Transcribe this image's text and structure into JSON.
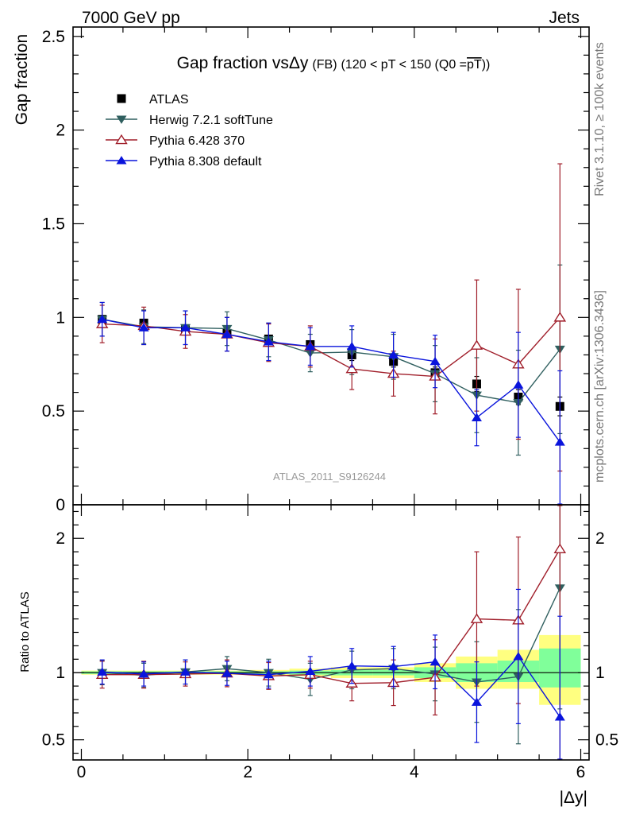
{
  "header": {
    "left": "7000 GeV pp",
    "right": "Jets"
  },
  "side": {
    "rivet": "Rivet 3.1.10, ≥ 100k events",
    "mcplots": "mcplots.cern.ch [arXiv:1306.3436]"
  },
  "chart_data": [
    {
      "type": "line",
      "title_main": "Gap fraction vs",
      "title_delta": "Δy",
      "title_fb": "(FB)",
      "title_cut": "(120 < pT < 150 (Q0 =",
      "title_pt": "pT",
      "title_close": "))",
      "ylabel": "Gap fraction",
      "watermark": "ATLAS_2011_S9126244",
      "xlim": [
        -0.1,
        6.1
      ],
      "ylim": [
        0,
        2.55
      ],
      "yticks": [
        0,
        0.5,
        1,
        1.5,
        2,
        2.5
      ],
      "ytick_labels": [
        "0",
        "0.5",
        "1",
        "1.5",
        "2",
        "2.5"
      ],
      "legend_position": "top-left",
      "x": [
        0.25,
        0.75,
        1.25,
        1.75,
        2.25,
        2.75,
        3.25,
        3.75,
        4.25,
        4.75,
        5.25,
        5.75
      ],
      "series": [
        {
          "name": "ATLAS",
          "marker": "square",
          "color": "#000000",
          "values": [
            0.99,
            0.97,
            0.94,
            0.915,
            0.885,
            0.855,
            0.8,
            0.765,
            0.705,
            0.645,
            0.575,
            0.525
          ],
          "err": [
            0.02,
            0.02,
            0.02,
            0.02,
            0.02,
            0.02,
            0.03,
            0.03,
            0.03,
            0.04,
            0.04,
            0.05
          ]
        },
        {
          "name": "Herwig 7.2.1 softTune",
          "marker": "triangle-down",
          "color": "#2f5f5f",
          "values": [
            0.99,
            0.95,
            0.945,
            0.94,
            0.88,
            0.81,
            0.815,
            0.79,
            0.7,
            0.585,
            0.545,
            0.83
          ],
          "err": [
            0.09,
            0.09,
            0.09,
            0.09,
            0.09,
            0.1,
            0.12,
            0.12,
            0.15,
            0.2,
            0.28,
            0.45
          ]
        },
        {
          "name": "Pythia 6.428 370",
          "marker": "triangle-up-open",
          "color": "#a01e2a",
          "values": [
            0.965,
            0.955,
            0.925,
            0.91,
            0.865,
            0.845,
            0.725,
            0.7,
            0.685,
            0.85,
            0.75,
            1.0
          ],
          "err": [
            0.1,
            0.1,
            0.09,
            0.09,
            0.1,
            0.11,
            0.11,
            0.12,
            0.2,
            0.35,
            0.4,
            0.82
          ]
        },
        {
          "name": "Pythia 8.308 default",
          "marker": "triangle-up",
          "color": "#0a14dc",
          "values": [
            0.99,
            0.945,
            0.945,
            0.91,
            0.87,
            0.845,
            0.845,
            0.8,
            0.765,
            0.465,
            0.64,
            0.335
          ],
          "err": [
            0.09,
            0.09,
            0.09,
            0.09,
            0.1,
            0.1,
            0.11,
            0.12,
            0.14,
            0.15,
            0.28,
            0.38
          ]
        }
      ]
    },
    {
      "type": "line",
      "ylabel": "Ratio to ATLAS",
      "xlabel": "|Δy|",
      "xlim": [
        -0.1,
        6.1
      ],
      "ylim": [
        0.35,
        2.25
      ],
      "xticks": [
        0,
        2,
        4,
        6
      ],
      "xtick_labels": [
        "0",
        "2",
        "4",
        "6"
      ],
      "yticks": [
        0.5,
        1,
        2
      ],
      "ytick_labels": [
        "0.5",
        "1",
        "2"
      ],
      "reference_line": 1,
      "bands": [
        {
          "x0": 0.0,
          "x1": 0.5,
          "yellow": [
            0.985,
            1.015
          ],
          "green": [
            0.99,
            1.01
          ]
        },
        {
          "x0": 0.5,
          "x1": 1.0,
          "yellow": [
            0.985,
            1.015
          ],
          "green": [
            0.99,
            1.01
          ]
        },
        {
          "x0": 1.0,
          "x1": 1.5,
          "yellow": [
            0.985,
            1.015
          ],
          "green": [
            0.99,
            1.01
          ]
        },
        {
          "x0": 1.5,
          "x1": 2.0,
          "yellow": [
            0.985,
            1.015
          ],
          "green": [
            0.99,
            1.01
          ]
        },
        {
          "x0": 2.0,
          "x1": 2.5,
          "yellow": [
            0.98,
            1.02
          ],
          "green": [
            0.99,
            1.01
          ]
        },
        {
          "x0": 2.5,
          "x1": 3.0,
          "yellow": [
            0.975,
            1.03
          ],
          "green": [
            0.985,
            1.015
          ]
        },
        {
          "x0": 3.0,
          "x1": 3.5,
          "yellow": [
            0.96,
            1.04
          ],
          "green": [
            0.98,
            1.02
          ]
        },
        {
          "x0": 3.5,
          "x1": 4.0,
          "yellow": [
            0.96,
            1.04
          ],
          "green": [
            0.98,
            1.02
          ]
        },
        {
          "x0": 4.0,
          "x1": 4.5,
          "yellow": [
            0.93,
            1.07
          ],
          "green": [
            0.96,
            1.04
          ]
        },
        {
          "x0": 4.5,
          "x1": 5.0,
          "yellow": [
            0.88,
            1.12
          ],
          "green": [
            0.93,
            1.07
          ]
        },
        {
          "x0": 5.0,
          "x1": 5.5,
          "yellow": [
            0.88,
            1.17
          ],
          "green": [
            0.93,
            1.09
          ]
        },
        {
          "x0": 5.5,
          "x1": 6.0,
          "yellow": [
            0.76,
            1.28
          ],
          "green": [
            0.89,
            1.18
          ]
        }
      ],
      "x": [
        0.25,
        0.75,
        1.25,
        1.75,
        2.25,
        2.75,
        3.25,
        3.75,
        4.25,
        4.75,
        5.25,
        5.75
      ],
      "series": [
        {
          "name": "Herwig 7.2.1 softTune",
          "marker": "triangle-down",
          "color": "#2f5f5f",
          "values": [
            1.0,
            0.98,
            1.005,
            1.03,
            1.0,
            0.95,
            1.02,
            1.03,
            0.99,
            0.93,
            0.97,
            1.63
          ],
          "err": [
            0.09,
            0.09,
            0.09,
            0.09,
            0.1,
            0.12,
            0.14,
            0.15,
            0.2,
            0.3,
            0.5,
            0.9
          ]
        },
        {
          "name": "Pythia 6.428 370",
          "marker": "triangle-up-open",
          "color": "#a01e2a",
          "values": [
            0.985,
            0.985,
            0.99,
            0.995,
            0.975,
            0.985,
            0.92,
            0.925,
            0.965,
            1.4,
            1.39,
            1.92
          ],
          "err": [
            0.1,
            0.1,
            0.09,
            0.1,
            0.1,
            0.1,
            0.13,
            0.17,
            0.28,
            0.5,
            0.62,
            1.6
          ]
        },
        {
          "name": "Pythia 8.308 default",
          "marker": "triangle-up",
          "color": "#0a14dc",
          "values": [
            1.005,
            0.99,
            1.005,
            0.995,
            0.985,
            1.01,
            1.05,
            1.045,
            1.08,
            0.78,
            1.12,
            0.67
          ],
          "err": [
            0.09,
            0.09,
            0.09,
            0.09,
            0.1,
            0.11,
            0.13,
            0.15,
            0.2,
            0.3,
            0.5,
            0.75
          ]
        }
      ]
    }
  ]
}
